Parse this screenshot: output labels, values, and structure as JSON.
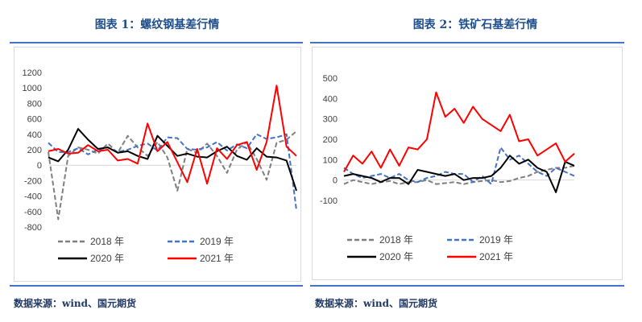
{
  "figures": [
    {
      "title": "图表 1：螺纹钢基差行情",
      "source": "数据来源：wind、国元期货"
    },
    {
      "title": "图表 2：铁矿石基差行情",
      "source": "数据来源：wind、国元期货"
    }
  ],
  "chart_data": [
    {
      "type": "line",
      "title": "图表 1：螺纹钢基差行情",
      "xlabel": "",
      "ylabel": "",
      "ylim": [
        -800,
        1200
      ],
      "yticks": [
        -800,
        -600,
        -400,
        -200,
        0,
        200,
        400,
        600,
        800,
        1000,
        1200
      ],
      "ytick_labels": [
        "-800",
        "-600",
        "-400",
        "-200",
        "0",
        "200",
        "400",
        "600",
        "800",
        "1000",
        "1200"
      ],
      "grid": false,
      "legend_position": "bottom",
      "x": [
        0,
        4,
        8,
        12,
        16,
        20,
        24,
        28,
        32,
        36,
        40,
        44,
        48,
        52,
        56,
        60,
        64,
        68,
        72,
        76,
        80,
        84,
        88,
        92,
        96,
        100
      ],
      "series": [
        {
          "name": "2018 年",
          "color": "#7f7f7f",
          "dash": "dash",
          "values": [
            170,
            -700,
            120,
            230,
            200,
            150,
            280,
            160,
            380,
            230,
            120,
            300,
            100,
            -330,
            210,
            160,
            280,
            120,
            -100,
            200,
            300,
            80,
            -190,
            290,
            330,
            440
          ]
        },
        {
          "name": "2019 年",
          "color": "#4472c4",
          "dash": "dash",
          "values": [
            290,
            170,
            170,
            220,
            140,
            200,
            230,
            170,
            200,
            250,
            280,
            190,
            360,
            350,
            210,
            200,
            230,
            300,
            190,
            270,
            220,
            400,
            340,
            360,
            400,
            -580
          ]
        },
        {
          "name": "2020 年",
          "color": "#000000",
          "dash": "solid",
          "values": [
            100,
            50,
            200,
            470,
            330,
            210,
            230,
            160,
            180,
            120,
            80,
            380,
            250,
            120,
            150,
            110,
            100,
            180,
            240,
            120,
            70,
            220,
            110,
            100,
            60,
            -330
          ]
        },
        {
          "name": "2021 年",
          "color": "#ff0000",
          "dash": "solid",
          "values": [
            180,
            210,
            150,
            160,
            260,
            180,
            200,
            60,
            80,
            20,
            540,
            180,
            300,
            40,
            -220,
            210,
            -240,
            220,
            80,
            260,
            300,
            -60,
            300,
            1030,
            240,
            120
          ]
        }
      ]
    },
    {
      "type": "line",
      "title": "图表 2：铁矿石基差行情",
      "xlabel": "",
      "ylabel": "",
      "ylim": [
        -100,
        500
      ],
      "yticks": [
        -100,
        0,
        100,
        200,
        300,
        400,
        500
      ],
      "ytick_labels": [
        "-100",
        "0",
        "100",
        "200",
        "300",
        "400",
        "500"
      ],
      "grid": false,
      "legend_position": "bottom",
      "x": [
        0,
        4,
        8,
        12,
        16,
        20,
        24,
        28,
        32,
        36,
        40,
        44,
        48,
        52,
        56,
        60,
        64,
        68,
        72,
        76,
        80,
        84,
        88,
        92,
        96,
        100
      ],
      "series": [
        {
          "name": "2018 年",
          "color": "#7f7f7f",
          "dash": "dash",
          "values": [
            -20,
            0,
            -10,
            -20,
            -10,
            -5,
            -20,
            -10,
            -10,
            0,
            -20,
            -15,
            -10,
            -20,
            -10,
            -5,
            0,
            -10,
            -5,
            10,
            20,
            40,
            50,
            60,
            60,
            70
          ]
        },
        {
          "name": "2019 年",
          "color": "#4472c4",
          "dash": "dash",
          "values": [
            60,
            30,
            10,
            20,
            30,
            10,
            30,
            0,
            -10,
            10,
            20,
            40,
            30,
            30,
            -10,
            20,
            -20,
            160,
            100,
            120,
            80,
            40,
            20,
            60,
            40,
            20
          ]
        },
        {
          "name": "2020 年",
          "color": "#000000",
          "dash": "solid",
          "values": [
            20,
            30,
            20,
            10,
            -10,
            10,
            10,
            -20,
            50,
            40,
            30,
            20,
            30,
            0,
            10,
            10,
            20,
            60,
            120,
            80,
            100,
            60,
            40,
            -60,
            90,
            70
          ]
        },
        {
          "name": "2021 年",
          "color": "#ff0000",
          "dash": "solid",
          "values": [
            40,
            120,
            80,
            140,
            60,
            150,
            70,
            160,
            150,
            200,
            430,
            310,
            350,
            280,
            360,
            300,
            270,
            240,
            320,
            190,
            200,
            120,
            150,
            180,
            90,
            130
          ]
        }
      ]
    }
  ]
}
